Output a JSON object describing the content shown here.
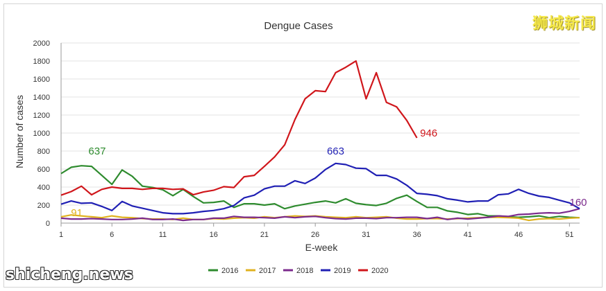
{
  "watermarks": {
    "brand_cn": "狮城新闻",
    "site": "shicheng.news"
  },
  "chart_data": {
    "type": "line",
    "title": "Dengue Cases",
    "xlabel": "E-week",
    "ylabel": "Number of cases",
    "xlim": [
      1,
      52
    ],
    "ylim": [
      0,
      2000
    ],
    "xticks": [
      1,
      6,
      11,
      16,
      21,
      26,
      31,
      36,
      41,
      46,
      51
    ],
    "yticks": [
      0,
      200,
      400,
      600,
      800,
      1000,
      1200,
      1400,
      1600,
      1800,
      2000
    ],
    "grid": true,
    "legend_position": "bottom",
    "series": [
      {
        "name": "2016",
        "color": "#2e8b2e",
        "x": [
          1,
          2,
          3,
          4,
          5,
          6,
          7,
          8,
          9,
          10,
          11,
          12,
          13,
          14,
          15,
          16,
          17,
          18,
          19,
          20,
          21,
          22,
          23,
          24,
          25,
          26,
          27,
          28,
          29,
          30,
          31,
          32,
          33,
          34,
          35,
          36,
          37,
          38,
          39,
          40,
          41,
          42,
          43,
          44,
          45,
          46,
          47,
          48,
          49,
          50,
          51,
          52
        ],
        "y": [
          550,
          620,
          637,
          630,
          530,
          430,
          590,
          520,
          410,
          395,
          370,
          305,
          375,
          295,
          225,
          230,
          245,
          175,
          215,
          215,
          200,
          215,
          160,
          190,
          210,
          230,
          245,
          225,
          270,
          220,
          205,
          195,
          220,
          275,
          310,
          240,
          175,
          175,
          135,
          120,
          95,
          105,
          80,
          80,
          70,
          65,
          70,
          80,
          60,
          75,
          65,
          60
        ]
      },
      {
        "name": "2017",
        "color": "#e0b21f",
        "x": [
          1,
          2,
          3,
          4,
          5,
          6,
          7,
          8,
          9,
          10,
          11,
          12,
          13,
          14,
          15,
          16,
          17,
          18,
          19,
          20,
          21,
          22,
          23,
          24,
          25,
          26,
          27,
          28,
          29,
          30,
          31,
          32,
          33,
          34,
          35,
          36,
          37,
          38,
          39,
          40,
          41,
          42,
          43,
          44,
          45,
          46,
          47,
          48,
          49,
          50,
          51,
          52
        ],
        "y": [
          70,
          91,
          80,
          70,
          60,
          80,
          65,
          60,
          50,
          45,
          45,
          40,
          55,
          40,
          40,
          50,
          45,
          55,
          60,
          55,
          70,
          60,
          70,
          80,
          75,
          80,
          70,
          65,
          60,
          70,
          60,
          65,
          70,
          55,
          45,
          45,
          50,
          50,
          45,
          50,
          55,
          60,
          65,
          65,
          60,
          55,
          30,
          45,
          50,
          45,
          55,
          60
        ]
      },
      {
        "name": "2018",
        "color": "#7b2a8c",
        "x": [
          1,
          2,
          3,
          4,
          5,
          6,
          7,
          8,
          9,
          10,
          11,
          12,
          13,
          14,
          15,
          16,
          17,
          18,
          19,
          20,
          21,
          22,
          23,
          24,
          25,
          26,
          27,
          28,
          29,
          30,
          31,
          32,
          33,
          34,
          35,
          36,
          37,
          38,
          39,
          40,
          41,
          42,
          43,
          44,
          45,
          46,
          47,
          48,
          49,
          50,
          51,
          52
        ],
        "y": [
          55,
          45,
          45,
          50,
          45,
          40,
          40,
          45,
          55,
          40,
          40,
          45,
          30,
          40,
          40,
          55,
          55,
          75,
          65,
          65,
          60,
          55,
          70,
          60,
          70,
          75,
          60,
          50,
          45,
          55,
          55,
          50,
          60,
          60,
          65,
          65,
          50,
          65,
          40,
          55,
          45,
          55,
          65,
          80,
          75,
          95,
          100,
          110,
          115,
          110,
          130,
          160
        ]
      },
      {
        "name": "2019",
        "color": "#1f1fb4",
        "x": [
          1,
          2,
          3,
          4,
          5,
          6,
          7,
          8,
          9,
          10,
          11,
          12,
          13,
          14,
          15,
          16,
          17,
          18,
          19,
          20,
          21,
          22,
          23,
          24,
          25,
          26,
          27,
          28,
          29,
          30,
          31,
          32,
          33,
          34,
          35,
          36,
          37,
          38,
          39,
          40,
          41,
          42,
          43,
          44,
          45,
          46,
          47,
          48,
          49,
          50,
          51,
          52
        ],
        "y": [
          210,
          245,
          220,
          225,
          185,
          140,
          240,
          190,
          165,
          140,
          115,
          105,
          105,
          115,
          130,
          140,
          160,
          195,
          280,
          310,
          380,
          410,
          410,
          470,
          440,
          500,
          595,
          663,
          650,
          610,
          605,
          530,
          530,
          490,
          420,
          330,
          320,
          305,
          270,
          255,
          235,
          245,
          245,
          315,
          325,
          375,
          330,
          300,
          285,
          255,
          225,
          160
        ]
      },
      {
        "name": "2020",
        "color": "#d0161b",
        "x": [
          1,
          2,
          3,
          4,
          5,
          6,
          7,
          8,
          9,
          10,
          11,
          12,
          13,
          14,
          15,
          16,
          17,
          18,
          19,
          20,
          21,
          22,
          23,
          24,
          25,
          26,
          27,
          28,
          29,
          30,
          31,
          32,
          33,
          34,
          35,
          36
        ],
        "y": [
          310,
          350,
          410,
          315,
          375,
          400,
          385,
          385,
          375,
          385,
          385,
          375,
          380,
          315,
          345,
          365,
          405,
          395,
          515,
          530,
          630,
          735,
          870,
          1150,
          1380,
          1470,
          1460,
          1670,
          1730,
          1800,
          1380,
          1670,
          1340,
          1290,
          1140,
          946
        ]
      }
    ],
    "annotations": [
      {
        "text": "637",
        "x": 4,
        "y": 637,
        "color": "#2e8b2e"
      },
      {
        "text": "91",
        "x": 2,
        "y": 91,
        "color": "#e0b21f"
      },
      {
        "text": "663",
        "x": 28,
        "y": 663,
        "color": "#1f1fb4"
      },
      {
        "text": "946",
        "x": 36,
        "y": 946,
        "color": "#d0161b"
      },
      {
        "text": "160",
        "x": 52,
        "y": 160,
        "color": "#7b2a8c"
      }
    ]
  }
}
